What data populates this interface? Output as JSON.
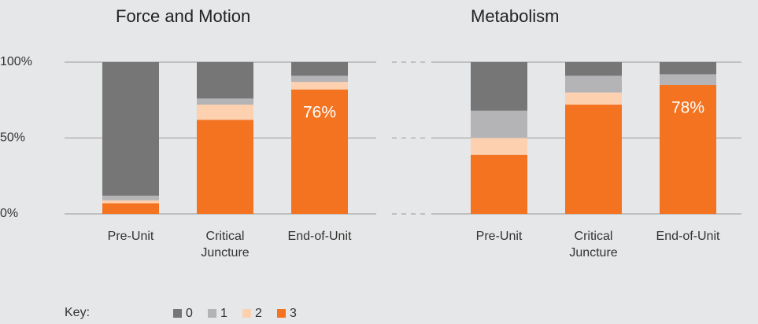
{
  "legend_title": "Key:",
  "chart_data": [
    {
      "type": "stacked_bar",
      "title": "Force and Motion",
      "categories": [
        "Pre-Unit",
        "Critical Juncture",
        "End-of-Unit"
      ],
      "series": [
        {
          "name": "0",
          "color": "#767676",
          "values": [
            88,
            24,
            9
          ]
        },
        {
          "name": "1",
          "color": "#b4b4b6",
          "values": [
            3,
            4,
            4
          ]
        },
        {
          "name": "2",
          "color": "#fdd0b0",
          "values": [
            2,
            10,
            5
          ]
        },
        {
          "name": "3",
          "color": "#f47321",
          "values": [
            7,
            62,
            82
          ]
        }
      ],
      "annotation": "76%",
      "ylim": [
        0,
        100
      ],
      "yticks": [
        {
          "value": 0,
          "label": "0%"
        },
        {
          "value": 50,
          "label": "50%"
        },
        {
          "value": 100,
          "label": "100%"
        }
      ],
      "grid": true
    },
    {
      "type": "stacked_bar",
      "title": "Metabolism",
      "categories": [
        "Pre-Unit",
        "Critical Juncture",
        "End-of-Unit"
      ],
      "series": [
        {
          "name": "0",
          "color": "#767676",
          "values": [
            32,
            9,
            8
          ]
        },
        {
          "name": "1",
          "color": "#b4b4b6",
          "values": [
            18,
            11,
            7
          ]
        },
        {
          "name": "2",
          "color": "#fdd0b0",
          "values": [
            11,
            8,
            0
          ]
        },
        {
          "name": "3",
          "color": "#f47321",
          "values": [
            39,
            72,
            85
          ]
        }
      ],
      "annotation": "78%",
      "ylim": [
        0,
        100
      ]
    }
  ]
}
